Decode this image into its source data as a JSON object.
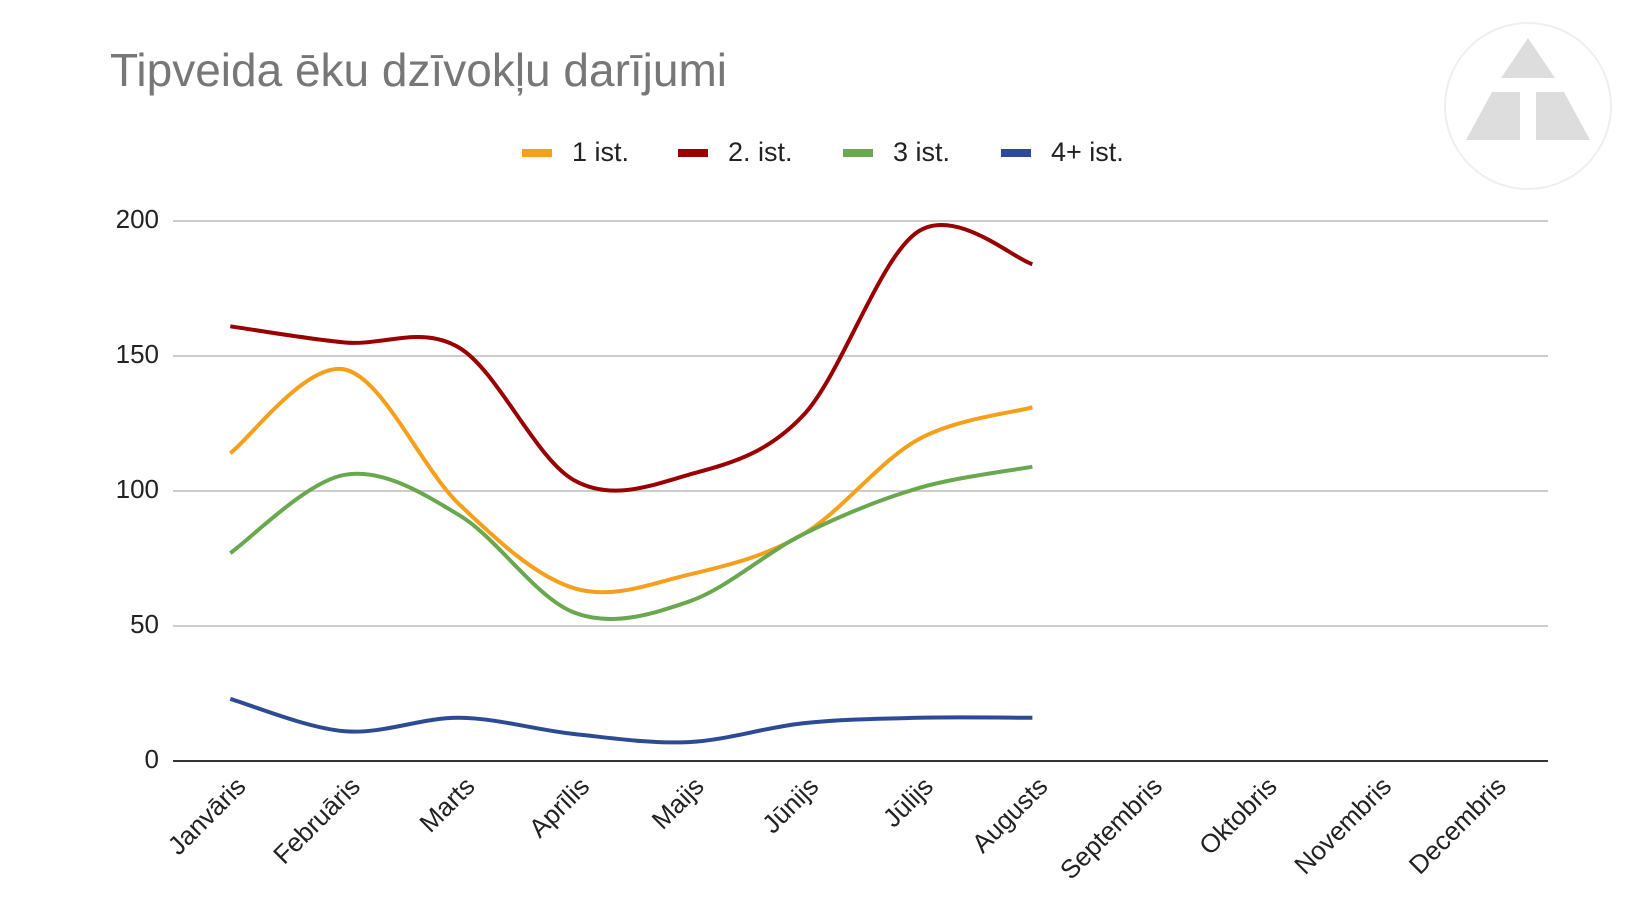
{
  "chart_data": {
    "type": "line",
    "title": "Tipveida ēku dzīvokļu darījumi",
    "categories": [
      "Janvāris",
      "Februāris",
      "Marts",
      "Aprīlis",
      "Maijs",
      "Jūnijs",
      "Jūlijs",
      "Augusts",
      "Septembris",
      "Oktobris",
      "Novembris",
      "Decembris"
    ],
    "series": [
      {
        "name": "1 ist.",
        "color": "#f59f1a",
        "values": [
          114,
          145,
          95,
          64,
          69,
          84,
          119,
          131,
          null,
          null,
          null,
          null
        ]
      },
      {
        "name": "2. ist.",
        "color": "#990000",
        "values": [
          161,
          155,
          153,
          104,
          106,
          128,
          196,
          184,
          null,
          null,
          null,
          null
        ]
      },
      {
        "name": "3 ist.",
        "color": "#6aa84f",
        "values": [
          77,
          106,
          91,
          55,
          59,
          84,
          101,
          109,
          null,
          null,
          null,
          null
        ]
      },
      {
        "name": "4+ ist.",
        "color": "#2d4b95",
        "values": [
          23,
          11,
          16,
          10,
          7,
          14,
          16,
          16,
          null,
          null,
          null,
          null
        ]
      }
    ],
    "ylim": [
      0,
      200
    ],
    "yticks": [
      0,
      50,
      100,
      150,
      200
    ],
    "grid": true,
    "smooth": true,
    "legend": "top"
  }
}
